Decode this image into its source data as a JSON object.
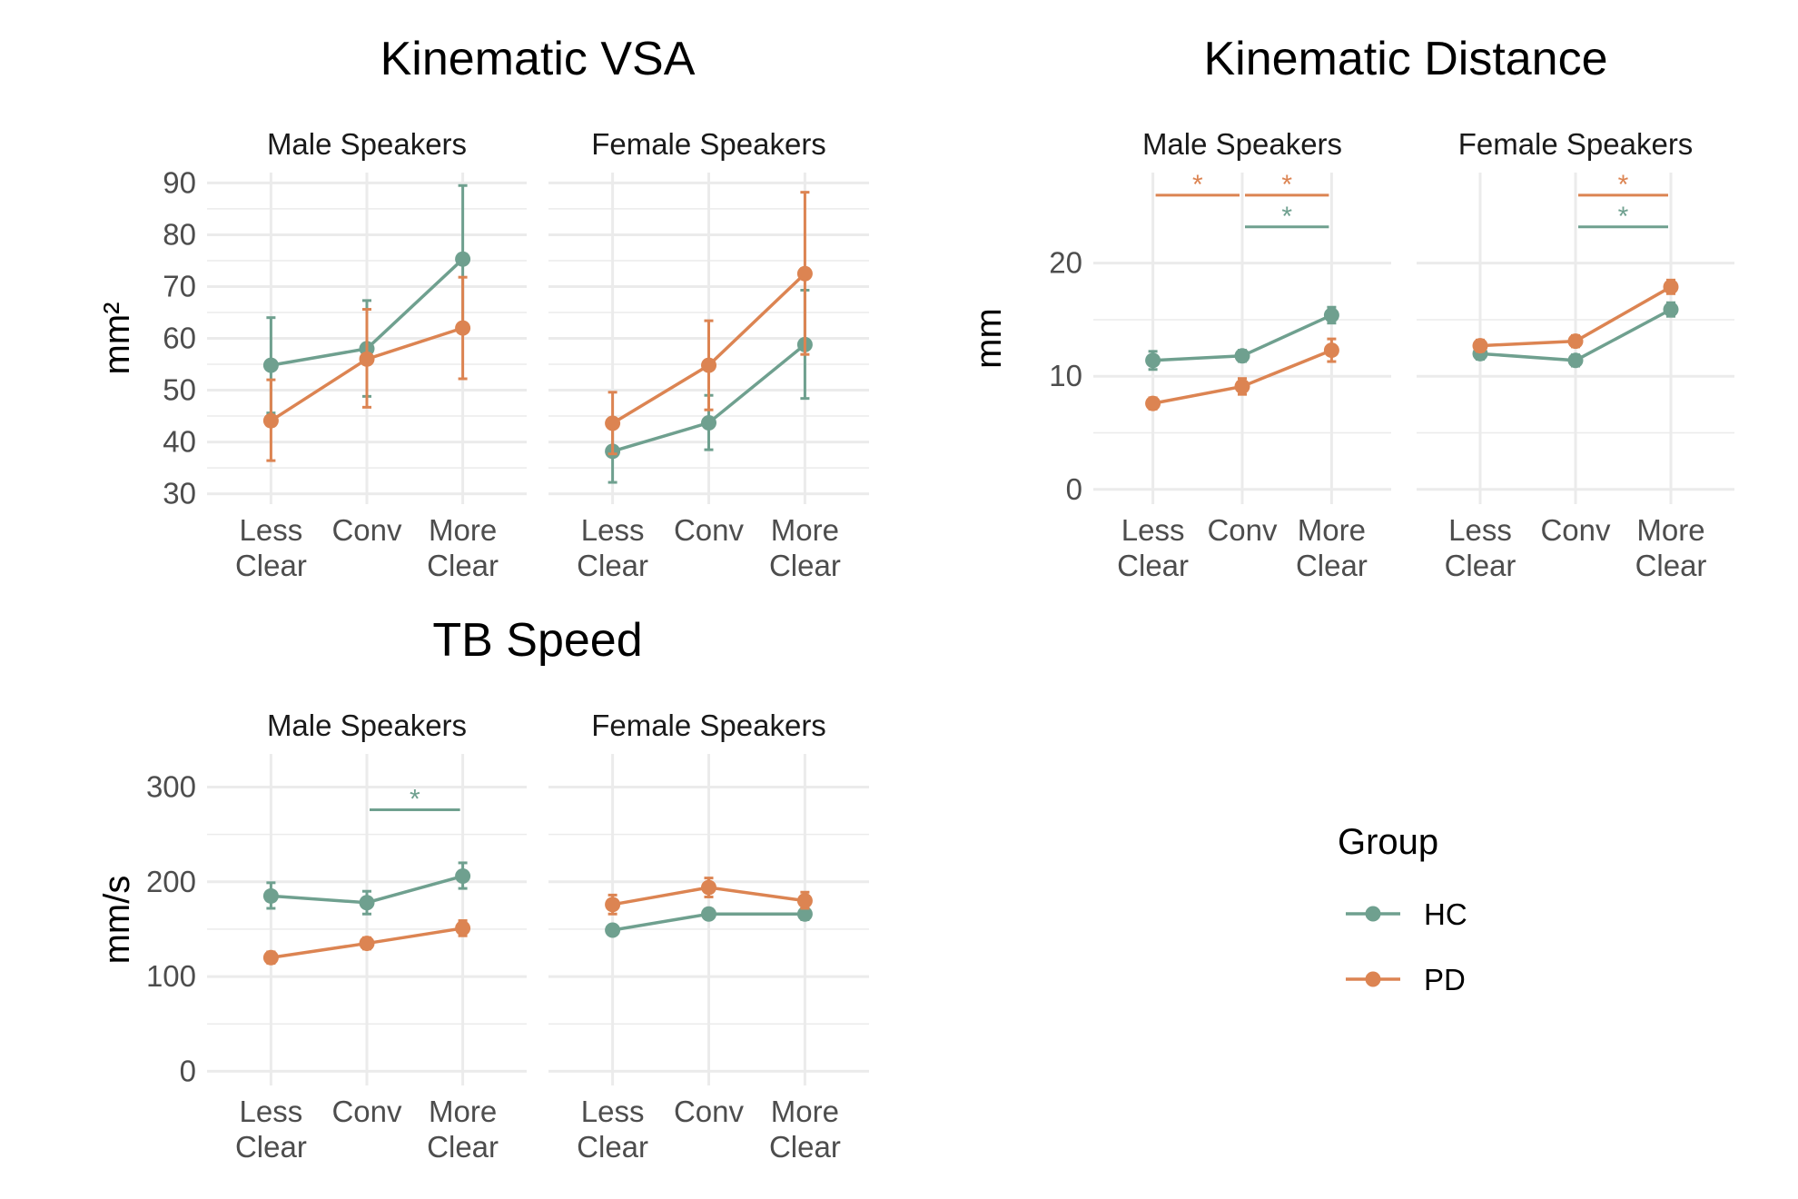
{
  "colors": {
    "HC": "#6fa08f",
    "PD": "#dc8452",
    "grid": "#ebebeb",
    "text": "#4d4d4d"
  },
  "categories": [
    "Less\nClear",
    "Conv",
    "More\nClear"
  ],
  "facets": [
    "Male Speakers",
    "Female Speakers"
  ],
  "legend": {
    "title": "Group",
    "items": [
      "HC",
      "PD"
    ]
  },
  "chart_data": [
    {
      "type": "line",
      "title": "Kinematic VSA",
      "ylabel": "mm²",
      "ylim": [
        28,
        92
      ],
      "yticks": [
        30,
        40,
        50,
        60,
        70,
        80,
        90
      ],
      "facets": [
        {
          "name": "Male Speakers",
          "series": [
            {
              "name": "HC",
              "values": [
                54.8,
                58.0,
                75.3
              ],
              "err_low": [
                45.6,
                48.8,
                61.4
              ],
              "err_high": [
                64.0,
                67.3,
                89.5
              ]
            },
            {
              "name": "PD",
              "values": [
                44.1,
                56.0,
                62.0
              ],
              "err_low": [
                36.4,
                46.7,
                52.2
              ],
              "err_high": [
                52.0,
                65.6,
                71.8
              ]
            }
          ],
          "significance": []
        },
        {
          "name": "Female Speakers",
          "series": [
            {
              "name": "HC",
              "values": [
                38.2,
                43.7,
                58.8
              ],
              "err_low": [
                32.2,
                38.5,
                48.4
              ],
              "err_high": [
                44.5,
                49.0,
                69.3
              ]
            },
            {
              "name": "PD",
              "values": [
                43.6,
                54.8,
                72.5
              ],
              "err_low": [
                37.7,
                46.2,
                56.9
              ],
              "err_high": [
                49.6,
                63.4,
                88.2
              ]
            }
          ],
          "significance": []
        }
      ]
    },
    {
      "type": "line",
      "title": "Kinematic Distance",
      "ylabel": "mm",
      "ylim": [
        -1.3,
        28
      ],
      "yticks": [
        0,
        10,
        20
      ],
      "facets": [
        {
          "name": "Male Speakers",
          "series": [
            {
              "name": "HC",
              "values": [
                11.4,
                11.8,
                15.4
              ],
              "err_low": [
                10.6,
                11.3,
                14.7
              ],
              "err_high": [
                12.2,
                12.3,
                16.1
              ]
            },
            {
              "name": "PD",
              "values": [
                7.6,
                9.1,
                12.3
              ],
              "err_low": [
                7.1,
                8.4,
                11.3
              ],
              "err_high": [
                8.1,
                9.8,
                13.3
              ]
            }
          ],
          "significance": [
            {
              "series": "PD",
              "from": 0,
              "to": 1,
              "y": 26.0,
              "label": "*"
            },
            {
              "series": "PD",
              "from": 1,
              "to": 2,
              "y": 26.0,
              "label": "*"
            },
            {
              "series": "HC",
              "from": 1,
              "to": 2,
              "y": 23.2,
              "label": "*"
            }
          ]
        },
        {
          "name": "Female Speakers",
          "series": [
            {
              "name": "HC",
              "values": [
                12.0,
                11.4,
                15.9
              ],
              "err_low": [
                11.5,
                10.9,
                15.3
              ],
              "err_high": [
                12.5,
                11.9,
                16.5
              ]
            },
            {
              "name": "PD",
              "values": [
                12.7,
                13.1,
                17.9
              ],
              "err_low": [
                12.2,
                12.6,
                17.3
              ],
              "err_high": [
                13.2,
                13.6,
                18.5
              ]
            }
          ],
          "significance": [
            {
              "series": "PD",
              "from": 1,
              "to": 2,
              "y": 26.0,
              "label": "*"
            },
            {
              "series": "HC",
              "from": 1,
              "to": 2,
              "y": 23.2,
              "label": "*"
            }
          ]
        }
      ]
    },
    {
      "type": "line",
      "title": "TB Speed",
      "ylabel": "mm/s",
      "ylim": [
        -15,
        335
      ],
      "yticks": [
        0,
        100,
        200,
        300
      ],
      "facets": [
        {
          "name": "Male Speakers",
          "series": [
            {
              "name": "HC",
              "values": [
                185,
                178,
                206
              ],
              "err_low": [
                172,
                166,
                193
              ],
              "err_high": [
                199,
                190,
                220
              ]
            },
            {
              "name": "PD",
              "values": [
                120,
                135,
                151
              ],
              "err_low": [
                114,
                129,
                143
              ],
              "err_high": [
                126,
                141,
                159
              ]
            }
          ],
          "significance": [
            {
              "series": "HC",
              "from": 1,
              "to": 2,
              "y": 276,
              "label": "*"
            }
          ]
        },
        {
          "name": "Female Speakers",
          "series": [
            {
              "name": "HC",
              "values": [
                149,
                166,
                166
              ],
              "err_low": [
                144,
                161,
                160
              ],
              "err_high": [
                154,
                171,
                172
              ]
            },
            {
              "name": "PD",
              "values": [
                176,
                194,
                180
              ],
              "err_low": [
                166,
                184,
                172
              ],
              "err_high": [
                186,
                204,
                189
              ]
            }
          ],
          "significance": []
        }
      ]
    }
  ]
}
